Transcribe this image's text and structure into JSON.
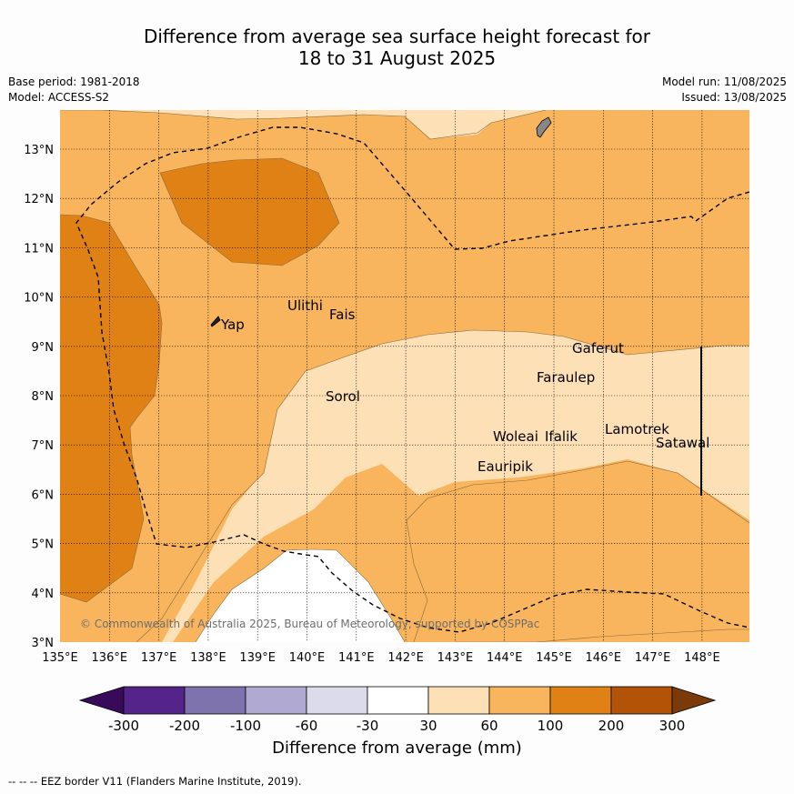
{
  "title_line1": "Difference from average sea surface height forecast for",
  "title_line2": "18 to 31 August 2025",
  "base_period": "Base period: 1981-2018",
  "model": "Model: ACCESS-S2",
  "model_run": "Model run: 11/08/2025",
  "issued": "Issued: 13/08/2025",
  "copyright": "© Commonwealth of Australia 2025, Bureau of Meteorology, supported by COSPPac",
  "x_ticks": [
    "135°E",
    "136°E",
    "137°E",
    "138°E",
    "139°E",
    "140°E",
    "141°E",
    "142°E",
    "143°E",
    "144°E",
    "145°E",
    "146°E",
    "147°E",
    "148°E"
  ],
  "y_ticks": [
    "3°N",
    "4°N",
    "5°N",
    "6°N",
    "7°N",
    "8°N",
    "9°N",
    "10°N",
    "11°N",
    "12°N",
    "13°N"
  ],
  "places": [
    {
      "name": "Yap"
    },
    {
      "name": "Ulithi"
    },
    {
      "name": "Fais"
    },
    {
      "name": "Sorol"
    },
    {
      "name": "Gaferut"
    },
    {
      "name": "Faraulep"
    },
    {
      "name": "Woleai"
    },
    {
      "name": "Ifalik"
    },
    {
      "name": "Lamotrek"
    },
    {
      "name": "Satawal"
    },
    {
      "name": "Eauripik"
    }
  ],
  "colorbar": {
    "ticks": [
      "-300",
      "-200",
      "-100",
      "-60",
      "-30",
      "30",
      "60",
      "100",
      "200",
      "300"
    ],
    "colors": {
      "under": "#3a0a5a",
      "b1": "#54248a",
      "b2": "#7f73ad",
      "b3": "#b0a9d2",
      "b4": "#dcdbec",
      "b5": "#ffffff",
      "b6": "#fde0b6",
      "b7": "#f8b55e",
      "b8": "#e08115",
      "b9": "#b25307",
      "over": "#7a3a0a"
    },
    "label": "Difference from average (mm)"
  },
  "footnote": "--  --  -- EEZ border V11 (Flanders Marine Institute, 2019)."
}
